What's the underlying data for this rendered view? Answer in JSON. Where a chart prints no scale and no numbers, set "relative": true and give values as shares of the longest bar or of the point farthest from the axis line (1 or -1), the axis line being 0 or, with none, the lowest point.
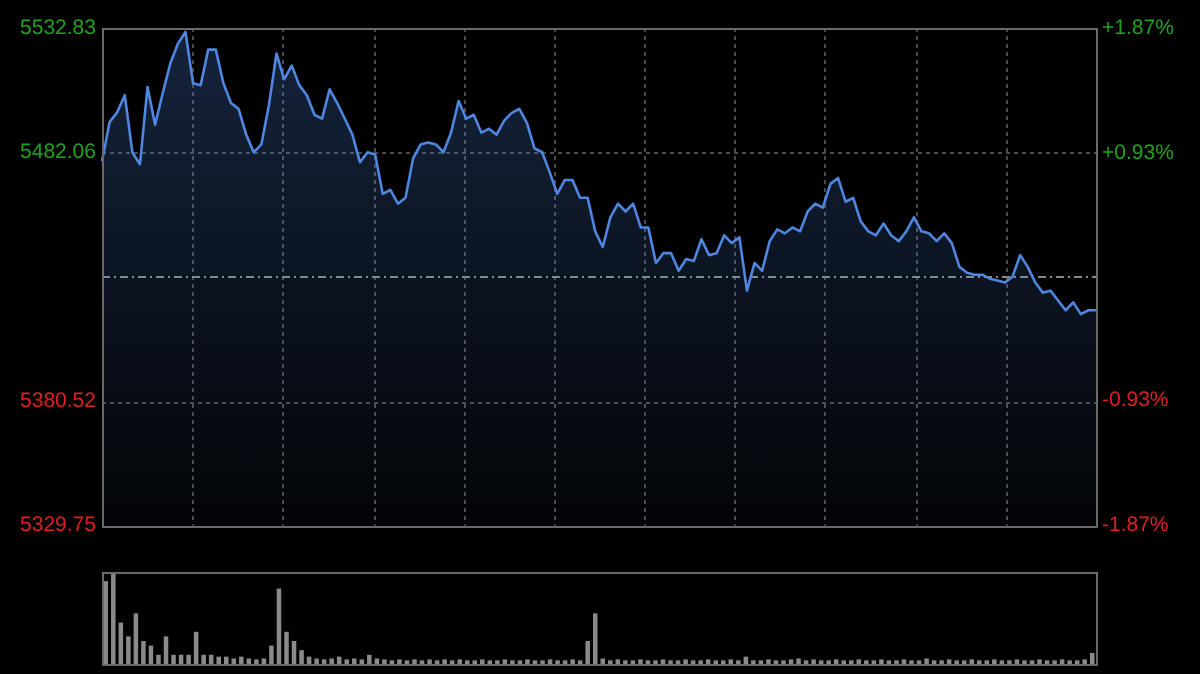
{
  "chart_data": [
    {
      "type": "area",
      "categories": [
        null,
        null,
        null,
        null,
        null,
        null,
        null,
        null,
        null,
        null,
        null,
        null,
        null,
        null,
        null,
        null,
        null,
        null,
        null,
        null,
        null,
        null,
        null,
        null,
        null,
        null,
        null,
        null,
        null,
        null,
        null,
        null,
        null,
        null,
        null,
        null,
        null,
        null,
        null,
        null,
        null,
        null,
        null,
        null,
        null,
        null,
        null,
        null,
        null,
        null,
        null,
        null,
        null,
        null,
        null,
        null,
        null,
        null,
        null,
        null,
        null,
        null,
        null,
        null,
        null,
        null,
        null,
        null,
        null,
        null,
        null,
        null,
        null,
        null,
        null,
        null,
        null,
        null,
        null,
        null,
        null,
        null,
        null,
        null,
        null,
        null,
        null,
        null,
        null,
        null,
        null,
        null,
        null,
        null,
        null,
        null,
        null,
        null,
        null,
        null,
        null,
        null,
        null,
        null,
        null,
        null,
        null,
        null,
        null,
        null,
        null,
        null,
        null,
        null,
        null,
        null,
        null,
        null,
        null,
        null,
        null,
        null,
        null,
        null,
        null,
        null,
        null,
        null,
        null,
        null,
        null,
        null
      ],
      "series": [
        {
          "color": "#4f86e0",
          "values": [
            5478.3,
            5494.4,
            5498.4,
            5505.4,
            5482.1,
            5477.2,
            5508.7,
            5493.3,
            5506.2,
            5518.3,
            5526.4,
            5531.2,
            5510.3,
            5509.5,
            5524.0,
            5524.0,
            5510.3,
            5502.2,
            5499.8,
            5489.3,
            5482.1,
            5485.3,
            5501.4,
            5522.4,
            5511.9,
            5517.5,
            5509.5,
            5505.4,
            5497.4,
            5495.8,
            5507.8,
            5502.2,
            5495.8,
            5489.3,
            5478.0,
            5482.1,
            5481.2,
            5465.1,
            5466.7,
            5461.1,
            5463.5,
            5479.6,
            5485.3,
            5486.1,
            5485.3,
            5482.1,
            5490.1,
            5503.0,
            5495.8,
            5497.4,
            5490.1,
            5491.7,
            5489.3,
            5495.0,
            5498.2,
            5499.8,
            5494.1,
            5483.7,
            5482.1,
            5474.0,
            5465.1,
            5470.8,
            5470.8,
            5463.5,
            5463.5,
            5449.8,
            5443.4,
            5455.5,
            5461.1,
            5457.9,
            5461.1,
            5451.4,
            5451.4,
            5436.9,
            5440.9,
            5440.9,
            5433.7,
            5438.5,
            5437.7,
            5446.6,
            5440.1,
            5440.9,
            5448.2,
            5445.0,
            5447.4,
            5425.6,
            5436.9,
            5433.7,
            5445.8,
            5450.6,
            5449.0,
            5451.4,
            5449.8,
            5457.9,
            5461.1,
            5459.5,
            5469.2,
            5471.6,
            5461.9,
            5463.5,
            5453.8,
            5449.8,
            5448.2,
            5453.0,
            5448.2,
            5445.8,
            5449.8,
            5455.5,
            5449.8,
            5449.0,
            5445.8,
            5449.0,
            5445.0,
            5435.3,
            5432.9,
            5432.1,
            5432.1,
            5430.5,
            5429.7,
            5428.9,
            5431.3,
            5440.1,
            5435.3,
            5428.9,
            5424.8,
            5425.6,
            5421.6,
            5417.6,
            5420.8,
            5416.0,
            5417.6,
            5417.6
          ]
        }
      ],
      "ylim": [
        5329.75,
        5532.83
      ],
      "yticks": [
        5329.75,
        5380.52,
        5482.06,
        5532.83
      ],
      "ref_lines": [
        {
          "axis": "y",
          "value": 5431.29,
          "color": "#8a8a8a",
          "line_style": "dashed"
        }
      ],
      "y2lim": [
        -1.87,
        1.87
      ],
      "y2ticks": [
        {
          "value": -1.87,
          "label": "-1.87%"
        },
        {
          "value": -0.93,
          "label": "-0.93%"
        },
        {
          "value": 0.93,
          "label": "+0.93%"
        },
        {
          "value": 1.87,
          "label": "+1.87%"
        }
      ],
      "grid": true
    },
    {
      "type": "bar",
      "relative": true,
      "categories": [
        null,
        null,
        null,
        null,
        null,
        null,
        null,
        null,
        null,
        null,
        null,
        null,
        null,
        null,
        null,
        null,
        null,
        null,
        null,
        null,
        null,
        null,
        null,
        null,
        null,
        null,
        null,
        null,
        null,
        null,
        null,
        null,
        null,
        null,
        null,
        null,
        null,
        null,
        null,
        null,
        null,
        null,
        null,
        null,
        null,
        null,
        null,
        null,
        null,
        null,
        null,
        null,
        null,
        null,
        null,
        null,
        null,
        null,
        null,
        null,
        null,
        null,
        null,
        null,
        null,
        null,
        null,
        null,
        null,
        null,
        null,
        null,
        null,
        null,
        null,
        null,
        null,
        null,
        null,
        null,
        null,
        null,
        null,
        null,
        null,
        null,
        null,
        null,
        null,
        null,
        null,
        null,
        null,
        null,
        null,
        null,
        null,
        null,
        null,
        null,
        null,
        null,
        null,
        null,
        null,
        null,
        null,
        null,
        null,
        null,
        null,
        null,
        null,
        null,
        null,
        null,
        null,
        null,
        null,
        null,
        null,
        null,
        null,
        null,
        null,
        null,
        null,
        null,
        null,
        null,
        null,
        null
      ],
      "series": [
        {
          "color": "#8a8a8a",
          "values": [
            0.9,
            1.0,
            0.45,
            0.3,
            0.55,
            0.25,
            0.2,
            0.1,
            0.3,
            0.1,
            0.1,
            0.1,
            0.35,
            0.1,
            0.1,
            0.08,
            0.08,
            0.06,
            0.08,
            0.06,
            0.05,
            0.06,
            0.2,
            0.82,
            0.35,
            0.25,
            0.15,
            0.08,
            0.06,
            0.05,
            0.06,
            0.08,
            0.05,
            0.06,
            0.05,
            0.1,
            0.06,
            0.05,
            0.04,
            0.05,
            0.04,
            0.05,
            0.04,
            0.05,
            0.04,
            0.05,
            0.04,
            0.05,
            0.04,
            0.04,
            0.05,
            0.04,
            0.04,
            0.05,
            0.04,
            0.04,
            0.05,
            0.04,
            0.04,
            0.05,
            0.04,
            0.04,
            0.05,
            0.04,
            0.25,
            0.55,
            0.06,
            0.04,
            0.05,
            0.04,
            0.04,
            0.05,
            0.04,
            0.04,
            0.05,
            0.04,
            0.04,
            0.05,
            0.04,
            0.04,
            0.05,
            0.04,
            0.04,
            0.05,
            0.04,
            0.08,
            0.04,
            0.04,
            0.05,
            0.04,
            0.04,
            0.05,
            0.06,
            0.04,
            0.05,
            0.04,
            0.04,
            0.05,
            0.04,
            0.04,
            0.05,
            0.04,
            0.04,
            0.05,
            0.04,
            0.04,
            0.05,
            0.04,
            0.04,
            0.06,
            0.04,
            0.04,
            0.05,
            0.04,
            0.04,
            0.05,
            0.04,
            0.04,
            0.05,
            0.04,
            0.04,
            0.05,
            0.04,
            0.04,
            0.05,
            0.04,
            0.04,
            0.05,
            0.04,
            0.04,
            0.05,
            0.12
          ]
        }
      ]
    }
  ]
}
